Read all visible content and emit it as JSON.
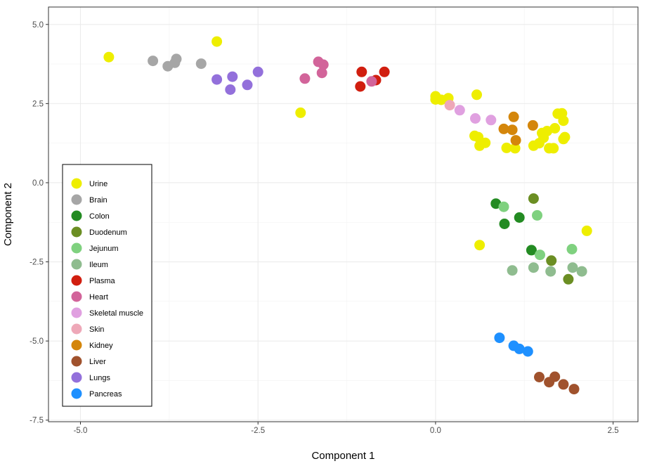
{
  "chart_data": {
    "type": "scatter",
    "title": "",
    "xlabel": "Component 1",
    "ylabel": "Component 2",
    "xlim": [
      -5.45,
      2.85
    ],
    "ylim": [
      -7.55,
      5.55
    ],
    "xticks": [
      -5.0,
      -2.5,
      0.0,
      2.5
    ],
    "xtick_labels": [
      "-5.0",
      "-2.5",
      "0.0",
      "2.5"
    ],
    "yticks": [
      -7.5,
      -5.0,
      -2.5,
      0.0,
      2.5,
      5.0
    ],
    "ytick_labels": [
      "-7.5",
      "-5.0",
      "-2.5",
      "0.0",
      "2.5",
      "5.0"
    ],
    "grid": true,
    "legend_position": "bottom-left",
    "series": [
      {
        "name": "Urine",
        "color": "#EEEE00",
        "points": [
          [
            -4.6,
            3.97
          ],
          [
            -3.08,
            4.46
          ],
          [
            -1.9,
            2.21
          ],
          [
            0.0,
            2.73
          ],
          [
            0.0,
            2.63
          ],
          [
            0.08,
            2.62
          ],
          [
            0.18,
            2.67
          ],
          [
            0.58,
            2.78
          ],
          [
            0.55,
            1.48
          ],
          [
            0.6,
            1.44
          ],
          [
            0.62,
            1.17
          ],
          [
            0.7,
            1.26
          ],
          [
            1.0,
            1.1
          ],
          [
            1.12,
            1.09
          ],
          [
            1.38,
            1.17
          ],
          [
            1.46,
            1.25
          ],
          [
            1.5,
            1.57
          ],
          [
            1.52,
            1.42
          ],
          [
            1.57,
            1.63
          ],
          [
            1.6,
            1.09
          ],
          [
            1.66,
            1.09
          ],
          [
            1.68,
            1.72
          ],
          [
            1.72,
            2.18
          ],
          [
            1.78,
            2.19
          ],
          [
            1.8,
            1.96
          ],
          [
            1.8,
            1.38
          ],
          [
            1.82,
            1.44
          ],
          [
            0.62,
            -1.97
          ],
          [
            2.13,
            -1.52
          ]
        ]
      },
      {
        "name": "Brain",
        "color": "#A6A6A6",
        "points": [
          [
            -3.98,
            3.85
          ],
          [
            -3.77,
            3.68
          ],
          [
            -3.67,
            3.79
          ],
          [
            -3.65,
            3.91
          ],
          [
            -3.3,
            3.76
          ]
        ]
      },
      {
        "name": "Colon",
        "color": "#238B22",
        "points": [
          [
            0.85,
            -0.66
          ],
          [
            0.97,
            -1.3
          ],
          [
            1.18,
            -1.1
          ],
          [
            1.35,
            -2.13
          ]
        ]
      },
      {
        "name": "Duodenum",
        "color": "#6B8E23",
        "points": [
          [
            1.38,
            -0.5
          ],
          [
            1.63,
            -2.46
          ],
          [
            1.87,
            -3.05
          ]
        ]
      },
      {
        "name": "Jejunum",
        "color": "#7FD17F",
        "points": [
          [
            0.96,
            -0.76
          ],
          [
            1.43,
            -1.03
          ],
          [
            1.47,
            -2.28
          ],
          [
            1.92,
            -2.1
          ]
        ]
      },
      {
        "name": "Ileum",
        "color": "#8FBC8F",
        "points": [
          [
            1.08,
            -2.77
          ],
          [
            1.38,
            -2.68
          ],
          [
            1.62,
            -2.8
          ],
          [
            1.93,
            -2.68
          ],
          [
            2.06,
            -2.8
          ]
        ]
      },
      {
        "name": "Plasma",
        "color": "#D11E0F",
        "points": [
          [
            -1.06,
            3.04
          ],
          [
            -1.04,
            3.5
          ],
          [
            -0.84,
            3.24
          ],
          [
            -0.72,
            3.5
          ]
        ]
      },
      {
        "name": "Heart",
        "color": "#D2649A",
        "points": [
          [
            -1.84,
            3.29
          ],
          [
            -1.65,
            3.82
          ],
          [
            -1.6,
            3.47
          ],
          [
            -1.58,
            3.73
          ],
          [
            -0.9,
            3.2
          ]
        ]
      },
      {
        "name": "Skeletal muscle",
        "color": "#E0A0E0",
        "points": [
          [
            0.34,
            2.29
          ],
          [
            0.56,
            2.03
          ],
          [
            0.78,
            1.98
          ]
        ]
      },
      {
        "name": "Skin",
        "color": "#EEA8B8",
        "points": [
          [
            0.2,
            2.45
          ]
        ]
      },
      {
        "name": "Kidney",
        "color": "#D4860B",
        "points": [
          [
            0.96,
            1.7
          ],
          [
            1.08,
            1.67
          ],
          [
            1.1,
            2.08
          ],
          [
            1.13,
            1.34
          ],
          [
            1.37,
            1.81
          ]
        ]
      },
      {
        "name": "Liver",
        "color": "#A0522D",
        "points": [
          [
            1.46,
            -6.14
          ],
          [
            1.6,
            -6.3
          ],
          [
            1.68,
            -6.13
          ],
          [
            1.8,
            -6.37
          ],
          [
            1.95,
            -6.52
          ]
        ]
      },
      {
        "name": "Lungs",
        "color": "#9370DB",
        "points": [
          [
            -3.08,
            3.26
          ],
          [
            -2.89,
            2.94
          ],
          [
            -2.86,
            3.35
          ],
          [
            -2.65,
            3.09
          ],
          [
            -2.5,
            3.5
          ]
        ]
      },
      {
        "name": "Pancreas",
        "color": "#1E90FF",
        "points": [
          [
            0.9,
            -4.9
          ],
          [
            1.1,
            -5.15
          ],
          [
            1.18,
            -5.25
          ],
          [
            1.3,
            -5.33
          ]
        ]
      }
    ]
  }
}
